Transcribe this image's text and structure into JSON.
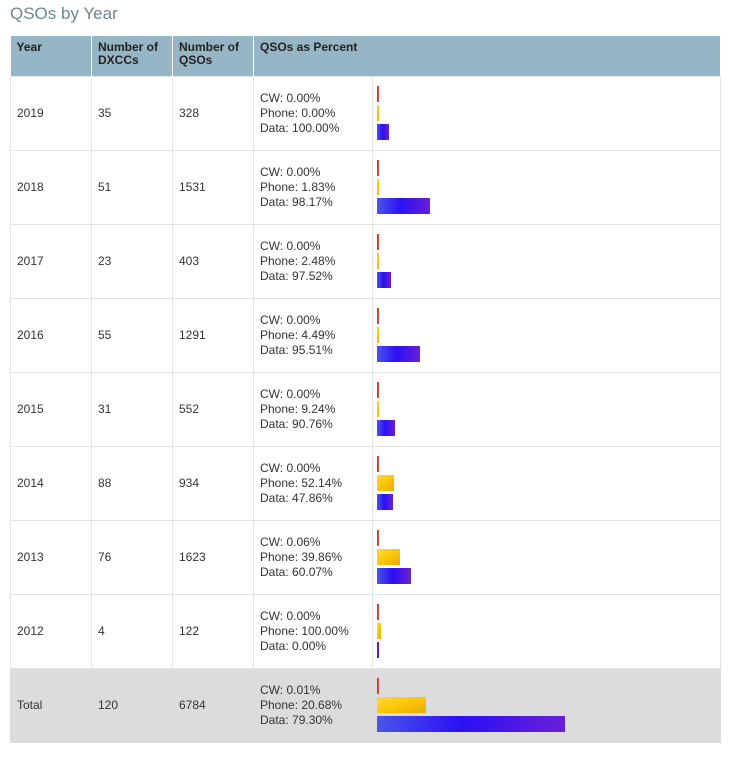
{
  "page_title": "QSOs by Year",
  "headers": [
    "Year",
    "Number of DXCCs",
    "Number of QSOs",
    "QSOs as Percent"
  ],
  "colors": {
    "cw": "#d9442c",
    "phone": "#fbcb0a",
    "data": "#2b10f5",
    "header_bg": "#97b6c5",
    "total_bg": "#dcdcdc"
  },
  "rows": [
    {
      "year": "2019",
      "dxccs": "35",
      "qsos": "328",
      "cw_text": "CW: 0.00%",
      "phone_text": "Phone: 0.00%",
      "data_text": "Data: 100.00%"
    },
    {
      "year": "2018",
      "dxccs": "51",
      "qsos": "1531",
      "cw_text": "CW: 0.00%",
      "phone_text": "Phone: 1.83%",
      "data_text": "Data: 98.17%"
    },
    {
      "year": "2017",
      "dxccs": "23",
      "qsos": "403",
      "cw_text": "CW: 0.00%",
      "phone_text": "Phone: 2.48%",
      "data_text": "Data: 97.52%"
    },
    {
      "year": "2016",
      "dxccs": "55",
      "qsos": "1291",
      "cw_text": "CW: 0.00%",
      "phone_text": "Phone: 4.49%",
      "data_text": "Data: 95.51%"
    },
    {
      "year": "2015",
      "dxccs": "31",
      "qsos": "552",
      "cw_text": "CW: 0.00%",
      "phone_text": "Phone: 9.24%",
      "data_text": "Data: 90.76%"
    },
    {
      "year": "2014",
      "dxccs": "88",
      "qsos": "934",
      "cw_text": "CW: 0.00%",
      "phone_text": "Phone: 52.14%",
      "data_text": "Data: 47.86%"
    },
    {
      "year": "2013",
      "dxccs": "76",
      "qsos": "1623",
      "cw_text": "CW: 0.06%",
      "phone_text": "Phone: 39.86%",
      "data_text": "Data: 60.07%"
    },
    {
      "year": "2012",
      "dxccs": "4",
      "qsos": "122",
      "cw_text": "CW: 0.00%",
      "phone_text": "Phone: 100.00%",
      "data_text": "Data: 0.00%"
    },
    {
      "year": "Total",
      "dxccs": "120",
      "qsos": "6784",
      "cw_text": "CW: 0.01%",
      "phone_text": "Phone: 20.68%",
      "data_text": "Data: 79.30%"
    }
  ],
  "chart_data": {
    "type": "bar",
    "categories": [
      "2019",
      "2018",
      "2017",
      "2016",
      "2015",
      "2014",
      "2013",
      "2012",
      "Total"
    ],
    "qsos": [
      328,
      1531,
      403,
      1291,
      552,
      934,
      1623,
      122,
      6784
    ],
    "series": [
      {
        "name": "CW",
        "values": [
          0.0,
          0.0,
          0.0,
          0.0,
          0.0,
          0.0,
          0.06,
          0.0,
          0.01
        ]
      },
      {
        "name": "Phone",
        "values": [
          0.0,
          1.83,
          2.48,
          4.49,
          9.24,
          52.14,
          39.86,
          100.0,
          20.68
        ]
      },
      {
        "name": "Data",
        "values": [
          100.0,
          98.17,
          97.52,
          95.51,
          90.76,
          47.86,
          60.07,
          0.0,
          79.3
        ]
      }
    ],
    "bar_scale": "QSO count per mode"
  }
}
